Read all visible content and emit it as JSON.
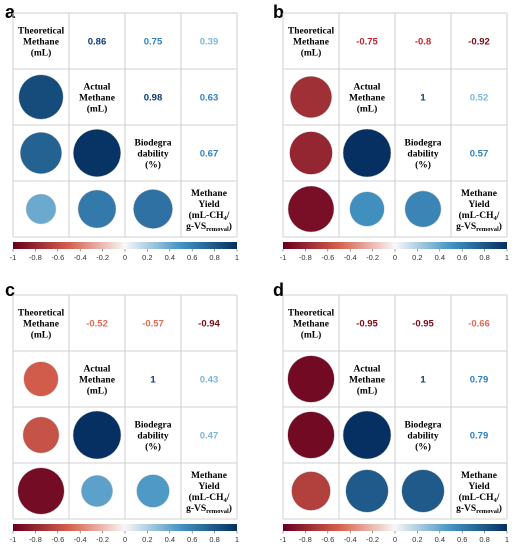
{
  "chart_data": [
    {
      "type": "heatmap",
      "panel_label": "a",
      "variables": [
        [
          "Theoretical",
          "Methane",
          "(mL)"
        ],
        [
          "Actual",
          "Methane",
          "(mL)"
        ],
        [
          "Biodegra",
          "dability",
          "(%)"
        ],
        [
          "Methane",
          "Yield",
          "(mL-CH4/",
          "g-VSremoval)"
        ]
      ],
      "correlations": [
        [
          1,
          0.86,
          0.75,
          0.39
        ],
        [
          0.86,
          1,
          0.98,
          0.63
        ],
        [
          0.75,
          0.98,
          1,
          0.67
        ],
        [
          0.39,
          0.63,
          0.67,
          1
        ]
      ],
      "upper_labels": [
        "0.86",
        "0.75",
        "0.39",
        "0.98",
        "0.63",
        "0.67"
      ],
      "colorbar": {
        "range": [
          -1,
          1
        ],
        "ticks": [
          "-1",
          "-0.8",
          "-0.6",
          "-0.4",
          "-0.2",
          "0",
          "0.2",
          "0.4",
          "0.6",
          "0.8",
          "1"
        ]
      }
    },
    {
      "type": "heatmap",
      "panel_label": "b",
      "variables": [
        [
          "Theoretical",
          "Methane",
          "(mL)"
        ],
        [
          "Actual",
          "Methane",
          "(mL)"
        ],
        [
          "Biodegra",
          "dability",
          "(%)"
        ],
        [
          "Methane",
          "Yield",
          "(mL-CH4/",
          "g-VSremoval)"
        ]
      ],
      "correlations": [
        [
          1,
          -0.75,
          -0.8,
          -0.92
        ],
        [
          -0.75,
          1,
          1,
          0.52
        ],
        [
          -0.8,
          1,
          1,
          0.57
        ],
        [
          -0.92,
          0.52,
          0.57,
          1
        ]
      ],
      "upper_labels": [
        "-0.75",
        "-0.8",
        "-0.92",
        "1",
        "0.52",
        "0.57"
      ],
      "colorbar": {
        "range": [
          -1,
          1
        ],
        "ticks": [
          "-1",
          "-0.8",
          "-0.6",
          "-0.4",
          "-0.2",
          "0",
          "0.2",
          "0.4",
          "0.6",
          "0.8",
          "1"
        ]
      }
    },
    {
      "type": "heatmap",
      "panel_label": "c",
      "variables": [
        [
          "Theoretical",
          "Methane",
          "(mL)"
        ],
        [
          "Actual",
          "Methane",
          "(mL)"
        ],
        [
          "Biodegra",
          "dability",
          "(%)"
        ],
        [
          "Methane",
          "Yield",
          "(mL-CH4/",
          "g-VSremoval)"
        ]
      ],
      "correlations": [
        [
          1,
          -0.52,
          -0.57,
          -0.94
        ],
        [
          -0.52,
          1,
          1,
          0.43
        ],
        [
          -0.57,
          1,
          1,
          0.47
        ],
        [
          -0.94,
          0.43,
          0.47,
          1
        ]
      ],
      "upper_labels": [
        "-0.52",
        "-0.57",
        "-0.94",
        "1",
        "0.43",
        "0.47"
      ],
      "colorbar": {
        "range": [
          -1,
          1
        ],
        "ticks": [
          "-1",
          "-0.8",
          "-0.6",
          "-0.4",
          "-0.2",
          "0",
          "0.2",
          "0.4",
          "0.6",
          "0.8",
          "1"
        ]
      }
    },
    {
      "type": "heatmap",
      "panel_label": "d",
      "variables": [
        [
          "Theoretical",
          "Methane",
          "(mL)"
        ],
        [
          "Actual",
          "Methane",
          "(mL)"
        ],
        [
          "Biodegra",
          "dability",
          "(%)"
        ],
        [
          "Methane",
          "Yield",
          "(mL-CH4/",
          "g-VSremoval)"
        ]
      ],
      "correlations": [
        [
          1,
          -0.95,
          -0.95,
          -0.66
        ],
        [
          -0.95,
          1,
          1,
          0.79
        ],
        [
          -0.95,
          1,
          1,
          0.79
        ],
        [
          -0.66,
          0.79,
          0.79,
          1
        ]
      ],
      "upper_labels": [
        "-0.95",
        "-0.95",
        "-0.66",
        "1",
        "0.79",
        "0.79"
      ],
      "colorbar": {
        "range": [
          -1,
          1
        ],
        "ticks": [
          "-1",
          "-0.8",
          "-0.6",
          "-0.4",
          "-0.2",
          "0",
          "0.2",
          "0.4",
          "0.6",
          "0.8",
          "1"
        ]
      }
    }
  ],
  "colors": {
    "negative_end": "#67001f",
    "negative_mid": "#d6604d",
    "neutral": "#f7f7f7",
    "positive_mid": "#4393c3",
    "positive_end": "#053061",
    "grid": "#d0d0d0"
  }
}
